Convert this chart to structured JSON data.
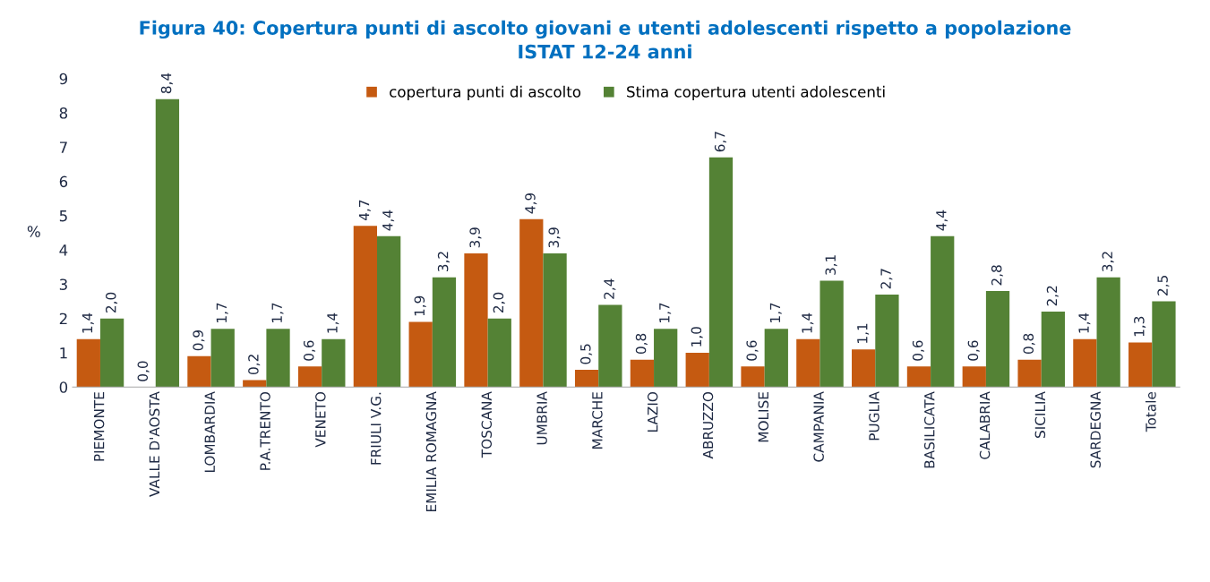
{
  "chart_data": {
    "type": "bar",
    "title": "Figura 40: Copertura punti di ascolto giovani e utenti adolescenti rispetto a popolazione\nISTAT 12-24 anni",
    "categories": [
      "PIEMONTE",
      "VALLE D'AOSTA",
      "LOMBARDIA",
      "P.A.TRENTO",
      "VENETO",
      "FRIULI V.G.",
      "EMILIA ROMAGNA",
      "TOSCANA",
      "UMBRIA",
      "MARCHE",
      "LAZIO",
      "ABRUZZO",
      "MOLISE",
      "CAMPANIA",
      "PUGLIA",
      "BASILICATA",
      "CALABRIA",
      "SICILIA",
      "SARDEGNA",
      "Totale"
    ],
    "series": [
      {
        "name": "copertura punti di ascolto",
        "color": "#c55a11",
        "values": [
          1.4,
          0.0,
          0.9,
          0.2,
          0.6,
          4.7,
          1.9,
          3.9,
          4.9,
          0.5,
          0.8,
          1.0,
          0.6,
          1.4,
          1.1,
          0.6,
          0.6,
          0.8,
          1.4,
          1.3
        ],
        "value_labels": [
          "1,4",
          "0,0",
          "0,9",
          "0,2",
          "0,6",
          "4,7",
          "1,9",
          "3,9",
          "4,9",
          "0,5",
          "0,8",
          "1,0",
          "0,6",
          "1,4",
          "1,1",
          "0,6",
          "0,6",
          "0,8",
          "1,4",
          "1,3"
        ]
      },
      {
        "name": "Stima copertura utenti adolescenti",
        "color": "#548235",
        "values": [
          2.0,
          8.4,
          1.7,
          1.7,
          1.4,
          4.4,
          3.2,
          2.0,
          3.9,
          2.4,
          1.7,
          6.7,
          1.7,
          3.1,
          2.7,
          4.4,
          2.8,
          2.2,
          3.2,
          2.5
        ],
        "value_labels": [
          "2,0",
          "8,4",
          "1,7",
          "1,7",
          "1,4",
          "4,4",
          "3,2",
          "2,0",
          "3,9",
          "2,4",
          "1,7",
          "6,7",
          "1,7",
          "3,1",
          "2,7",
          "4,4",
          "2,8",
          "2,2",
          "3,2",
          "2,5"
        ]
      }
    ],
    "ylabel": "%",
    "ylim": [
      0,
      9
    ],
    "yticks": [
      0,
      1,
      2,
      3,
      4,
      5,
      6,
      7,
      8,
      9
    ],
    "legend": "top",
    "grid": false
  }
}
